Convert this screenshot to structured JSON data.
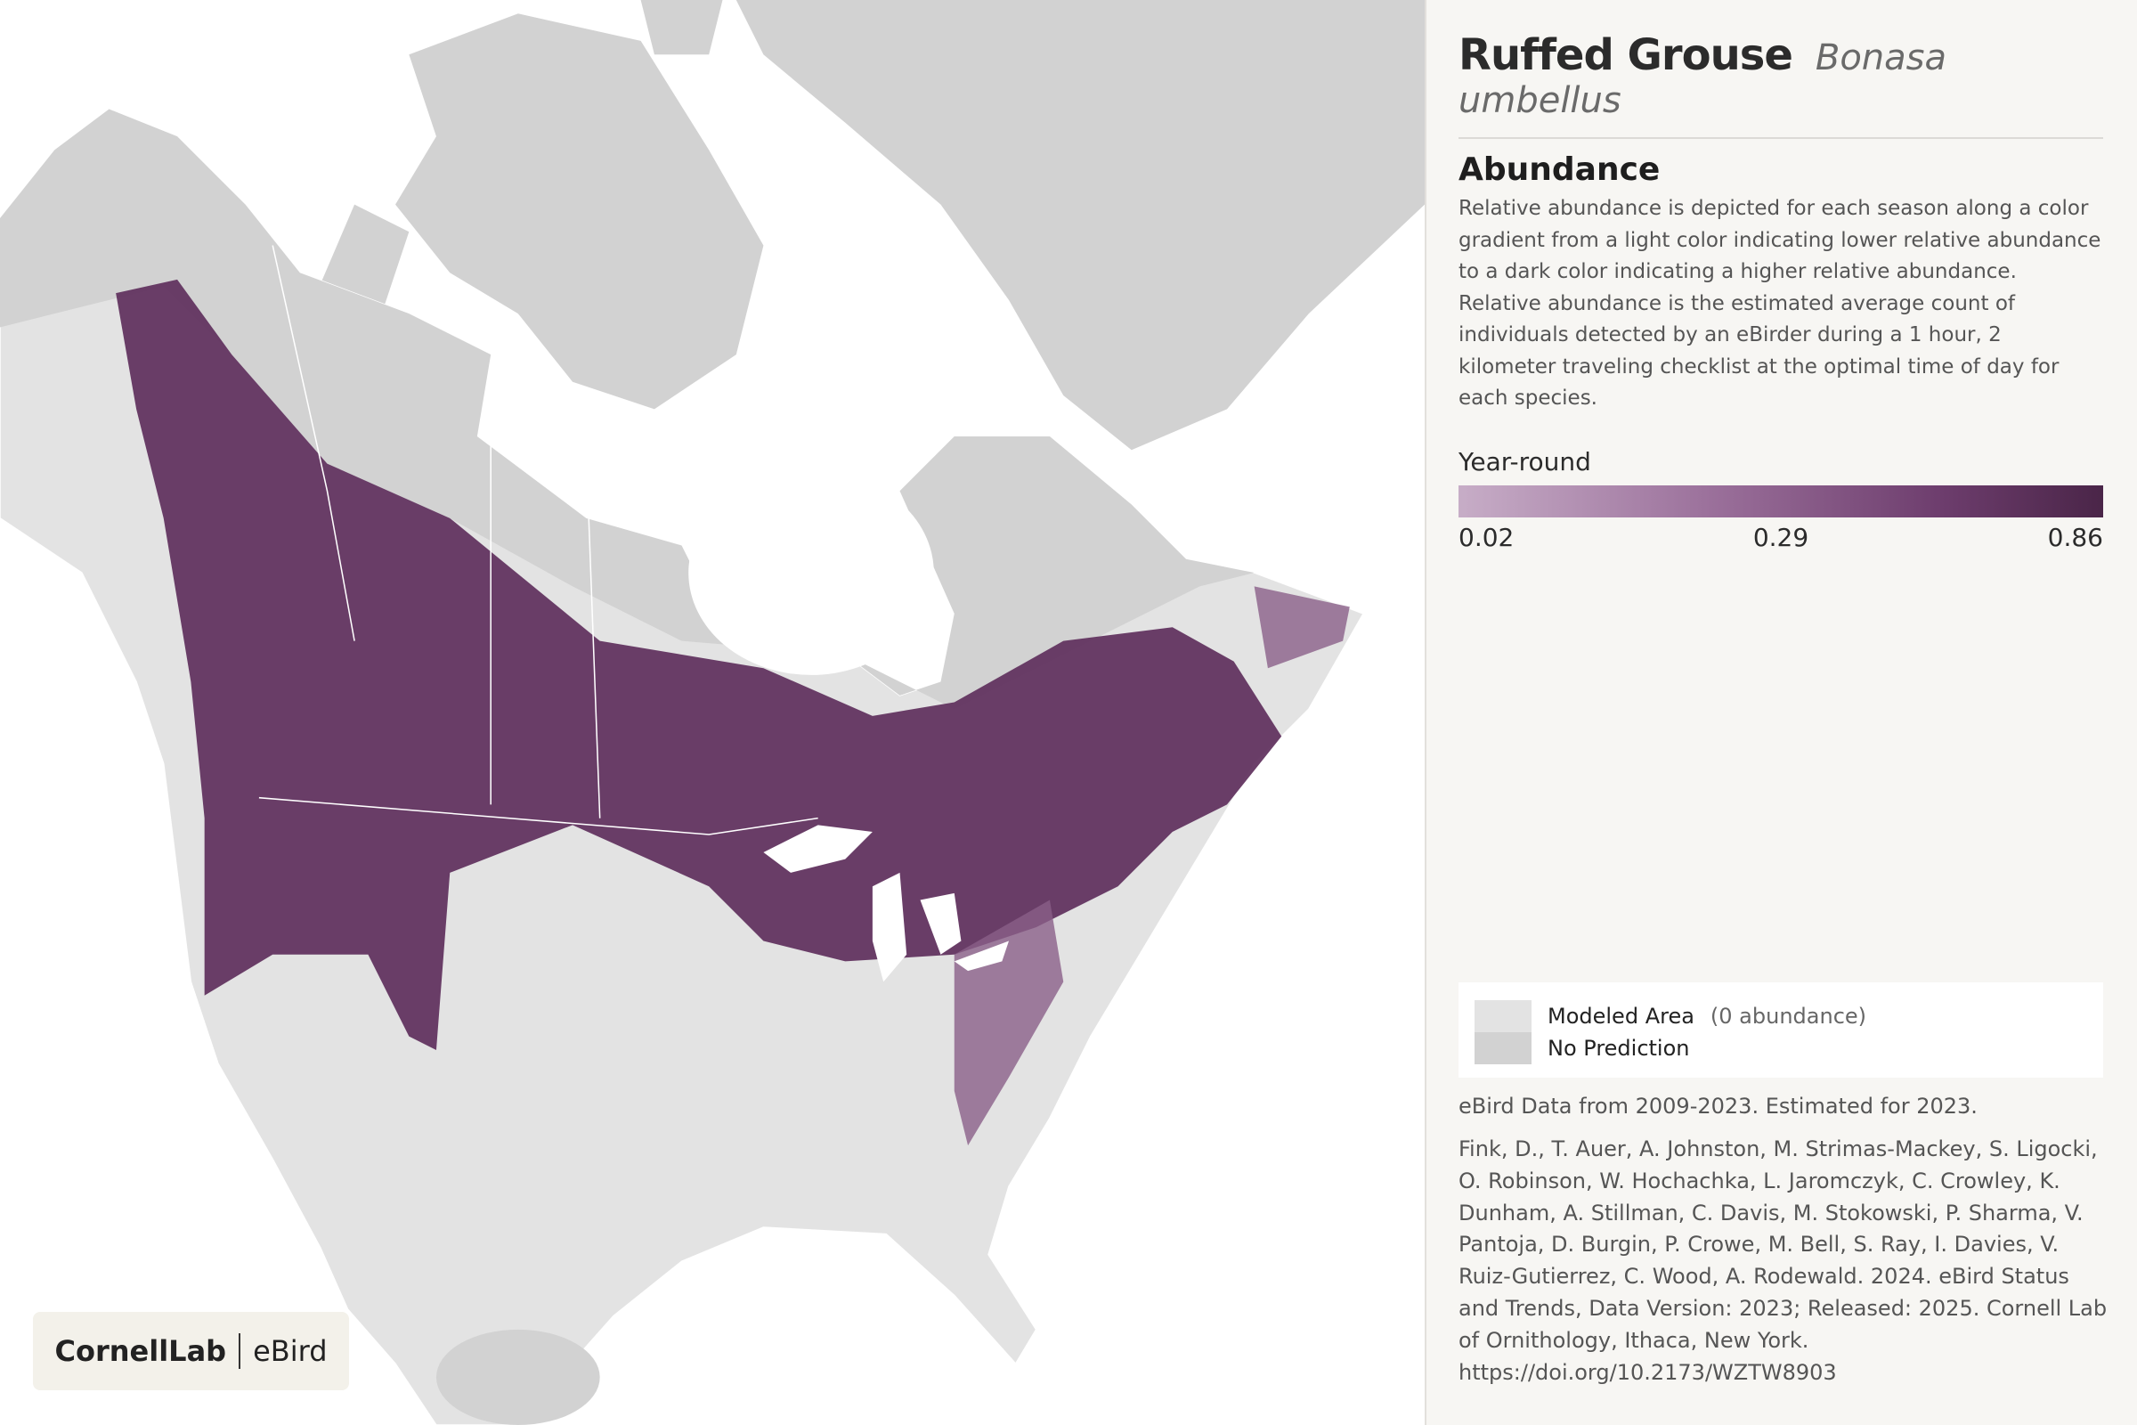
{
  "header": {
    "common_name": "Ruffed Grouse",
    "scientific_name": "Bonasa umbellus"
  },
  "abundance": {
    "title": "Abundance",
    "description": "Relative abundance is depicted for each season along a color gradient from a light color indicating lower relative abundance to a dark color indicating a higher relative abundance. Relative abundance is the estimated average count of individuals detected by an eBirder during a 1 hour, 2 kilometer traveling checklist at the optimal time of day for each species."
  },
  "legend": {
    "season": "Year-round",
    "ticks": [
      "0.02",
      "0.29",
      "0.86"
    ],
    "items": [
      {
        "label": "Modeled Area",
        "note": "(0 abundance)"
      },
      {
        "label": "No Prediction"
      }
    ]
  },
  "data_note": "eBird Data from 2009-2023. Estimated for 2023.",
  "citation": "Fink, D., T. Auer, A. Johnston, M. Strimas-Mackey, S. Ligocki, O. Robinson, W. Hochachka, L. Jaromczyk, C. Crowley, K. Dunham, A. Stillman, C. Davis, M. Stokowski, P. Sharma, V. Pantoja, D. Burgin, P. Crowe, M. Bell, S. Ray, I. Davies, V. Ruiz-Gutierrez, C. Wood, A. Rodewald. 2024. eBird Status and Trends, Data Version: 2023; Released: 2025. Cornell Lab of Ornithology, Ithaca, New York. https://doi.org/10.2173/WZTW8903",
  "logo": {
    "left": "CornellLab",
    "right": "eBird"
  }
}
